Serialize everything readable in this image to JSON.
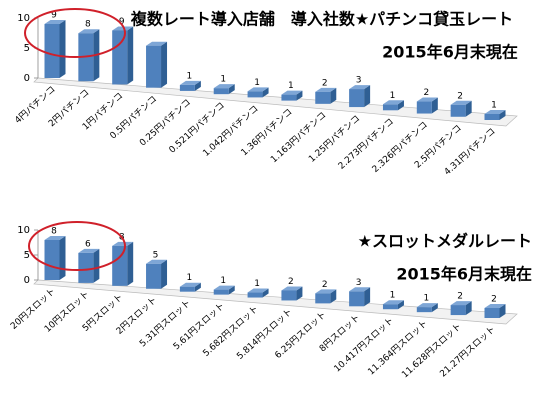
{
  "chart_data": [
    {
      "type": "bar3d",
      "title": "複数レート導入店舗　導入社数★パチンコ貸玉レート",
      "subtitle": "2015年6月末現在",
      "categories": [
        "4円パチンコ",
        "2円パチンコ",
        "1円パチンコ",
        "0.5円パチンコ",
        "0.25円パチンコ",
        "0.521円パチンコ",
        "1.042円パチンコ",
        "1.36円パチンコ",
        "1.163円パチンコ",
        "1.25円パチンコ",
        "2.273円パチンコ",
        "2.326円パチンコ",
        "2.5円パチンコ",
        "4.31円パチンコ"
      ],
      "values": [
        9,
        8,
        9,
        7,
        1,
        1,
        1,
        1,
        2,
        3,
        1,
        2,
        2,
        1
      ],
      "value_labels": [
        "9",
        "8",
        "9",
        null,
        "1",
        "1",
        "1",
        "1",
        "2",
        "3",
        "1",
        "2",
        "2",
        "1"
      ],
      "color": "#4f81bd",
      "ylim": [
        0,
        10
      ],
      "yticks": [
        0,
        5,
        10
      ]
    },
    {
      "type": "bar3d",
      "title": "★スロットメダルレート",
      "subtitle": "2015年6月末現在",
      "categories": [
        "20円スロット",
        "10円スロット",
        "5円スロット",
        "2円スロット",
        "5.31円スロット",
        "5.61円スロット",
        "5.682円スロット",
        "5.814円スロット",
        "6.25円スロット",
        "8円スロット",
        "10.417円スロット",
        "11.364円スロット",
        "11.628円スロット",
        "21.27円スロット"
      ],
      "values": [
        8,
        6,
        8,
        5,
        1,
        1,
        1,
        2,
        2,
        3,
        1,
        1,
        2,
        2
      ],
      "color": "#4f81bd",
      "ylim": [
        0,
        10
      ],
      "yticks": [
        0,
        5,
        10
      ]
    }
  ]
}
